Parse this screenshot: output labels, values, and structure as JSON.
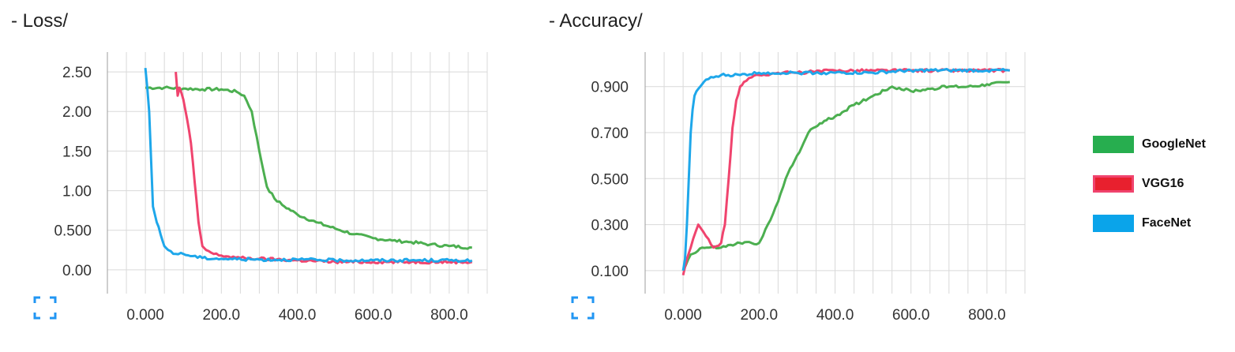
{
  "charts": {
    "loss": {
      "title": "- Loss/"
    },
    "accuracy": {
      "title": "- Accuracy/"
    }
  },
  "icons": {
    "expand": "expand-icon"
  },
  "colors": {
    "GoogleNet": "#4caf50",
    "VGG16": "#f0446e",
    "FaceNet": "#1ea7ea",
    "expand": "#2196f3"
  },
  "legend": [
    {
      "name": "GoogleNet",
      "swatch": "#27ae4f",
      "border": "#27ae4f"
    },
    {
      "name": "VGG16",
      "swatch": "#e8202e",
      "border": "#f0446e"
    },
    {
      "name": "FaceNet",
      "swatch": "#0aa4ea",
      "border": "#0aa4ea"
    }
  ],
  "chart_data": [
    {
      "type": "line",
      "title": "- Loss/",
      "xlim": [
        -100,
        900
      ],
      "ylim": [
        -0.3,
        2.75
      ],
      "x_ticks": [
        "0.000",
        "200.0",
        "400.0",
        "600.0",
        "800.0"
      ],
      "x_tick_values": [
        0,
        200,
        400,
        600,
        800
      ],
      "y_ticks": [
        "0.00",
        "0.500",
        "1.00",
        "1.50",
        "2.00",
        "2.50"
      ],
      "y_tick_values": [
        0,
        0.5,
        1.0,
        1.5,
        2.0,
        2.5
      ],
      "grid": true,
      "series": [
        {
          "name": "GoogleNet",
          "x": [
            0,
            50,
            100,
            150,
            200,
            240,
            260,
            280,
            300,
            320,
            340,
            360,
            400,
            450,
            500,
            550,
            600,
            650,
            700,
            750,
            800,
            860
          ],
          "y": [
            2.3,
            2.3,
            2.29,
            2.28,
            2.28,
            2.25,
            2.2,
            2.0,
            1.5,
            1.05,
            0.9,
            0.82,
            0.7,
            0.6,
            0.52,
            0.45,
            0.4,
            0.37,
            0.35,
            0.32,
            0.3,
            0.28
          ]
        },
        {
          "name": "VGG16",
          "x": [
            80,
            85,
            90,
            100,
            110,
            120,
            130,
            140,
            150,
            160,
            180,
            200,
            250,
            300,
            400,
            500,
            600,
            700,
            800,
            860
          ],
          "y": [
            2.5,
            2.2,
            2.3,
            2.15,
            1.9,
            1.6,
            1.1,
            0.6,
            0.3,
            0.25,
            0.2,
            0.18,
            0.15,
            0.14,
            0.12,
            0.1,
            0.1,
            0.1,
            0.1,
            0.1
          ]
        },
        {
          "name": "FaceNet",
          "x": [
            0,
            5,
            10,
            15,
            20,
            25,
            30,
            40,
            50,
            60,
            80,
            100,
            150,
            200,
            300,
            400,
            500,
            600,
            700,
            800,
            860
          ],
          "y": [
            2.55,
            2.3,
            2.0,
            1.4,
            0.8,
            0.7,
            0.6,
            0.45,
            0.3,
            0.25,
            0.2,
            0.2,
            0.15,
            0.14,
            0.13,
            0.13,
            0.12,
            0.12,
            0.12,
            0.12,
            0.12
          ]
        }
      ]
    },
    {
      "type": "line",
      "title": "- Accuracy/",
      "xlim": [
        -100,
        900
      ],
      "ylim": [
        0.0,
        1.05
      ],
      "x_ticks": [
        "0.000",
        "200.0",
        "400.0",
        "600.0",
        "800.0"
      ],
      "x_tick_values": [
        0,
        200,
        400,
        600,
        800
      ],
      "y_ticks": [
        "0.100",
        "0.300",
        "0.500",
        "0.700",
        "0.900"
      ],
      "y_tick_values": [
        0.1,
        0.3,
        0.5,
        0.7,
        0.9
      ],
      "grid": true,
      "series": [
        {
          "name": "GoogleNet",
          "x": [
            0,
            20,
            50,
            100,
            150,
            180,
            200,
            210,
            230,
            250,
            270,
            300,
            330,
            360,
            400,
            450,
            500,
            550,
            600,
            650,
            700,
            750,
            800,
            860
          ],
          "y": [
            0.1,
            0.17,
            0.2,
            0.2,
            0.22,
            0.22,
            0.22,
            0.25,
            0.32,
            0.4,
            0.5,
            0.6,
            0.7,
            0.74,
            0.77,
            0.82,
            0.86,
            0.9,
            0.88,
            0.89,
            0.9,
            0.9,
            0.91,
            0.92
          ]
        },
        {
          "name": "VGG16",
          "x": [
            0,
            10,
            20,
            40,
            60,
            80,
            100,
            110,
            120,
            130,
            140,
            150,
            160,
            180,
            200,
            250,
            300,
            400,
            500,
            600,
            700,
            800,
            860
          ],
          "y": [
            0.08,
            0.15,
            0.2,
            0.3,
            0.25,
            0.2,
            0.22,
            0.3,
            0.5,
            0.72,
            0.84,
            0.9,
            0.92,
            0.94,
            0.95,
            0.96,
            0.96,
            0.97,
            0.97,
            0.97,
            0.97,
            0.97,
            0.97
          ]
        },
        {
          "name": "FaceNet",
          "x": [
            0,
            5,
            10,
            15,
            20,
            25,
            30,
            40,
            50,
            60,
            80,
            100,
            150,
            200,
            300,
            400,
            500,
            600,
            700,
            800,
            860
          ],
          "y": [
            0.1,
            0.15,
            0.3,
            0.5,
            0.7,
            0.8,
            0.86,
            0.89,
            0.91,
            0.93,
            0.94,
            0.95,
            0.95,
            0.96,
            0.96,
            0.96,
            0.96,
            0.97,
            0.97,
            0.97,
            0.97
          ]
        }
      ]
    }
  ]
}
